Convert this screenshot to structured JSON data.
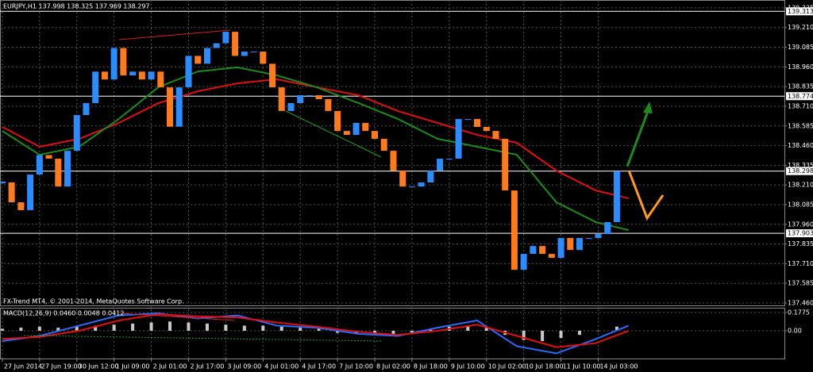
{
  "chart_data": [
    {
      "type": "candlestick",
      "title": "EURJPY,H1  137.998 138.325 137.969 138.297",
      "up_color": "#2a8cff",
      "down_color": "#ff7a1a",
      "xlim": [
        -1,
        336
      ],
      "ylim": [
        137.445,
        139.385
      ],
      "xticks": [
        {
          "value": 0,
          "label": "27 Jun 2014"
        },
        {
          "value": 16,
          "label": "27 Jun 19:00"
        },
        {
          "value": 32,
          "label": "30 Jun 12:00"
        },
        {
          "value": 48,
          "label": "1 Jul 09:00"
        },
        {
          "value": 64,
          "label": "2 Jul 01:00"
        },
        {
          "value": 80,
          "label": "2 Jul 17:00"
        },
        {
          "value": 96,
          "label": "3 Jul 09:00"
        },
        {
          "value": 112,
          "label": "4 Jul 01:00"
        },
        {
          "value": 128,
          "label": "4 Jul 17:00"
        },
        {
          "value": 144,
          "label": "7 Jul 10:00"
        },
        {
          "value": 160,
          "label": "8 Jul 02:00"
        },
        {
          "value": 176,
          "label": "8 Jul 18:00"
        },
        {
          "value": 192,
          "label": "9 Jul 10:00"
        },
        {
          "value": 208,
          "label": "10 Jul 02:00"
        },
        {
          "value": 224,
          "label": "10 Jul 18:00"
        },
        {
          "value": 240,
          "label": "11 Jul 10:00"
        },
        {
          "value": 256,
          "label": "14 Jul 03:00"
        }
      ],
      "yticks": [
        139.335,
        {
          "value": 139.21,
          "label": "139.210"
        },
        139.085,
        {
          "value": 138.96,
          "label": "138.960"
        },
        138.835,
        {
          "value": 138.71,
          "label": "138.710"
        },
        138.585,
        {
          "value": 138.46,
          "label": "138.460"
        },
        138.335,
        {
          "value": 138.21,
          "label": "138.210"
        },
        138.085,
        {
          "value": 137.96,
          "label": "137.960"
        },
        137.835,
        {
          "value": 137.71,
          "label": "137.710"
        },
        137.585,
        {
          "value": 137.46,
          "label": "137.460"
        }
      ],
      "grid": true,
      "levels": [
        139.313,
        138.774,
        138.298,
        137.903
      ],
      "x": [
        0,
        4,
        8,
        12,
        16,
        20,
        24,
        28,
        32,
        36,
        40,
        44,
        48,
        52,
        56,
        60,
        64,
        68,
        72,
        76,
        80,
        84,
        88,
        92,
        96,
        100,
        104,
        108,
        112,
        116,
        120,
        124,
        128,
        132,
        136,
        140,
        144,
        148,
        152,
        156,
        160,
        164,
        168,
        172,
        176,
        180,
        184,
        188,
        192,
        196,
        200,
        204,
        208,
        212,
        216,
        220,
        224,
        228,
        232,
        236,
        240,
        244,
        248,
        252,
        256,
        260,
        264
      ],
      "values": [
        138.226,
        138.1,
        138.05,
        138.276,
        138.4,
        138.377,
        138.2,
        138.427,
        138.654,
        138.73,
        138.93,
        138.88,
        139.08,
        138.906,
        138.93,
        138.88,
        138.93,
        138.83,
        138.58,
        138.83,
        139.03,
        138.98,
        139.08,
        139.11,
        139.183,
        139.03,
        139.057,
        139.057,
        138.98,
        138.83,
        138.68,
        138.73,
        138.78,
        138.78,
        138.755,
        138.68,
        138.553,
        138.528,
        138.604,
        138.553,
        138.503,
        138.427,
        138.301,
        138.2,
        138.2,
        138.226,
        138.301,
        138.377,
        138.377,
        138.629,
        138.629,
        138.579,
        138.553,
        138.503,
        138.175,
        137.671,
        137.772,
        137.822,
        137.772,
        137.747,
        137.873,
        137.797,
        137.873,
        137.873,
        137.898,
        137.974,
        138.297
      ],
      "series": [
        {
          "color": "#e01010",
          "x": [
            0,
            16,
            33,
            50,
            67,
            84,
            101,
            118,
            135,
            153,
            170,
            187,
            204,
            221,
            238,
            255,
            269
          ],
          "values": [
            138.579,
            138.453,
            138.503,
            138.604,
            138.73,
            138.805,
            138.856,
            138.881,
            138.831,
            138.78,
            138.679,
            138.604,
            138.528,
            138.478,
            138.301,
            138.175,
            138.125
          ]
        },
        {
          "color": "#1e8a1e",
          "x": [
            0,
            16,
            33,
            50,
            67,
            84,
            101,
            118,
            135,
            153,
            170,
            187,
            204,
            221,
            238,
            255,
            269
          ],
          "values": [
            138.553,
            138.402,
            138.453,
            138.629,
            138.831,
            138.931,
            138.957,
            138.906,
            138.831,
            138.73,
            138.629,
            138.503,
            138.453,
            138.402,
            138.1,
            137.974,
            137.923
          ]
        }
      ]
    },
    {
      "type": "macd",
      "title": "MACD(12,26,9) 0.0460 0.0048 0.0412",
      "xlim": [
        -1,
        336
      ],
      "ylim": [
        -0.27,
        0.224
      ],
      "yticks": [
        0.1775,
        {
          "value": 0,
          "label": "0.00"
        }
      ],
      "color": "#c8c8c8",
      "x": [
        0,
        8,
        16,
        24,
        32,
        40,
        48,
        56,
        64,
        72,
        80,
        88,
        96,
        104,
        112,
        120,
        128,
        136,
        144,
        152,
        160,
        168,
        176,
        184,
        192,
        200,
        208,
        216,
        224,
        232,
        240,
        248,
        256,
        264
      ],
      "values": [
        0.02,
        0.03,
        0.04,
        0.03,
        0.04,
        0.05,
        0.06,
        0.07,
        0.08,
        0.09,
        0.08,
        0.07,
        0.06,
        0.05,
        0.05,
        0.04,
        0.03,
        0.02,
        -0.02,
        -0.03,
        -0.04,
        -0.03,
        -0.02,
        0.02,
        0.04,
        0.05,
        0.03,
        -0.04,
        -0.09,
        -0.1,
        -0.07,
        -0.04,
        0.0,
        0.04
      ],
      "series": [
        {
          "color": "#2a6cff",
          "x": [
            0,
            16,
            33,
            50,
            67,
            84,
            101,
            118,
            135,
            153,
            170,
            187,
            204,
            221,
            238,
            255,
            269
          ],
          "values": [
            -0.1,
            -0.05,
            0.05,
            0.15,
            0.17,
            0.12,
            0.15,
            0.05,
            0.03,
            -0.03,
            -0.05,
            0.03,
            0.1,
            -0.15,
            -0.22,
            -0.08,
            0.05
          ]
        },
        {
          "color": "#e01010",
          "x": [
            0,
            16,
            33,
            50,
            67,
            84,
            101,
            118,
            135,
            153,
            170,
            187,
            204,
            221,
            238,
            255,
            269
          ],
          "values": [
            -0.08,
            -0.06,
            0.0,
            0.1,
            0.16,
            0.14,
            0.13,
            0.08,
            0.04,
            -0.01,
            -0.04,
            0.0,
            0.06,
            -0.05,
            -0.16,
            -0.12,
            0.0
          ]
        }
      ]
    }
  ],
  "footer": "FX-Trend MT4, © 2001-2014, MetaQuotes Software Corp."
}
